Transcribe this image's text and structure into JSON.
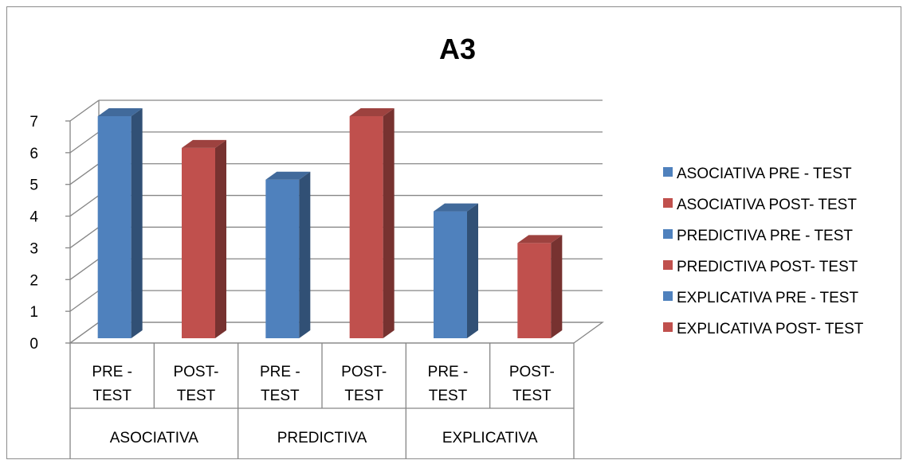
{
  "chart_data": {
    "type": "bar",
    "title": "A3",
    "categories": [
      {
        "group": "ASOCIATIVA",
        "sub": [
          "PRE -",
          "TEST"
        ]
      },
      {
        "group": "ASOCIATIVA",
        "sub": [
          "POST-",
          "TEST"
        ]
      },
      {
        "group": "PREDICTIVA",
        "sub": [
          "PRE -",
          "TEST"
        ]
      },
      {
        "group": "PREDICTIVA",
        "sub": [
          "POST-",
          "TEST"
        ]
      },
      {
        "group": "EXPLICATIVA",
        "sub": [
          "PRE -",
          "TEST"
        ]
      },
      {
        "group": "EXPLICATIVA",
        "sub": [
          "POST-",
          "TEST"
        ]
      }
    ],
    "groups": [
      "ASOCIATIVA",
      "PREDICTIVA",
      "EXPLICATIVA"
    ],
    "series": [
      {
        "name": "ASOCIATIVA PRE - TEST",
        "color": "#4f81bd",
        "values": [
          7,
          null,
          null,
          null,
          null,
          null
        ]
      },
      {
        "name": "ASOCIATIVA POST- TEST",
        "color": "#c0504d",
        "values": [
          null,
          6,
          null,
          null,
          null,
          null
        ]
      },
      {
        "name": "PREDICTIVA PRE - TEST",
        "color": "#4f81bd",
        "values": [
          null,
          null,
          5,
          null,
          null,
          null
        ]
      },
      {
        "name": "PREDICTIVA POST- TEST",
        "color": "#c0504d",
        "values": [
          null,
          null,
          null,
          7,
          null,
          null
        ]
      },
      {
        "name": "EXPLICATIVA PRE - TEST",
        "color": "#4f81bd",
        "values": [
          null,
          null,
          null,
          null,
          4,
          null
        ]
      },
      {
        "name": "EXPLICATIVA POST- TEST",
        "color": "#c0504d",
        "values": [
          null,
          null,
          null,
          null,
          null,
          3
        ]
      }
    ],
    "ylim": [
      0,
      7
    ],
    "yticks": [
      "0",
      "1",
      "2",
      "3",
      "4",
      "5",
      "6",
      "7"
    ],
    "grid": true,
    "legend_position": "right",
    "style": "3d-column"
  }
}
